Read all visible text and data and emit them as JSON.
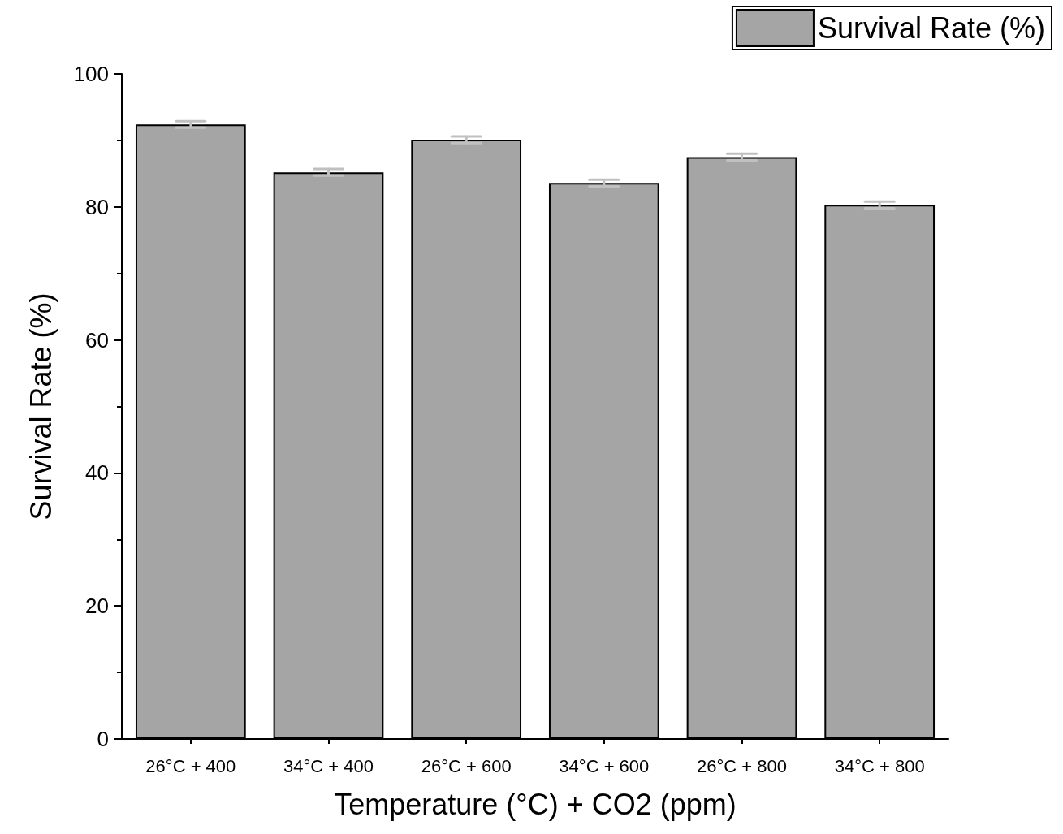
{
  "chart_data": {
    "type": "bar",
    "xlabel": "Temperature (°C) + CO2 (ppm)",
    "ylabel": "Survival Rate (%)",
    "categories": [
      "26°C + 400",
      "34°C + 400",
      "26°C + 600",
      "34°C + 600",
      "26°C + 800",
      "34°C + 800"
    ],
    "series": [
      {
        "name": "Survival Rate (%)",
        "color": "#a5a5a5",
        "values": [
          92.4,
          85.2,
          90.1,
          83.6,
          87.5,
          80.3
        ],
        "errors": [
          0.5,
          0.5,
          0.5,
          0.5,
          0.5,
          0.5
        ]
      }
    ],
    "ylim": [
      0,
      100
    ],
    "yticks": [
      0,
      20,
      40,
      60,
      80,
      100
    ],
    "grid": false,
    "legend": "top right"
  }
}
